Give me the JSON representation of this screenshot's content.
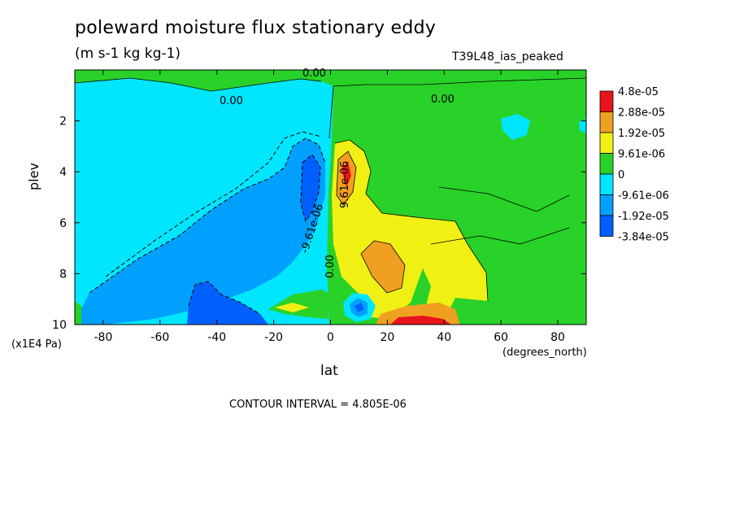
{
  "chart_data": {
    "type": "heatmap",
    "title": "poleward moisture flux stationary eddy",
    "subtitle": "(m s-1 kg kg-1)",
    "model_label": "T39L48_ias_peaked",
    "xlabel": "lat",
    "x_unit_label": "(degrees_north)",
    "ylabel": "plev",
    "y_unit_label": "(x1E4 Pa)",
    "xlim": [
      -90,
      90
    ],
    "ylim": [
      10,
      0
    ],
    "x_ticks": [
      "-80",
      "-60",
      "-40",
      "-20",
      "0",
      "20",
      "40",
      "60",
      "80"
    ],
    "x_tick_values": [
      -80,
      -60,
      -40,
      -20,
      0,
      20,
      40,
      60,
      80
    ],
    "y_ticks": [
      "2",
      "4",
      "6",
      "8",
      "10"
    ],
    "y_tick_values": [
      2,
      4,
      6,
      8,
      10
    ],
    "contour_interval_text": "CONTOUR INTERVAL = 4.805E-06",
    "contour_labels": [
      "0.00",
      "0.00",
      "0.00",
      "0.00",
      "-9.61e-06",
      "9.61e-06"
    ],
    "legend": {
      "position": "right",
      "labels": [
        "4.8e-05",
        "2.88e-05",
        "1.92e-05",
        "9.61e-06",
        "0",
        "-9.61e-06",
        "-1.92e-05",
        "-3.84e-05"
      ],
      "colors": [
        "#e8141c",
        "#f0a020",
        "#f0f014",
        "#28d228",
        "#00e6ff",
        "#00a0ff",
        "#0060ff"
      ]
    }
  }
}
